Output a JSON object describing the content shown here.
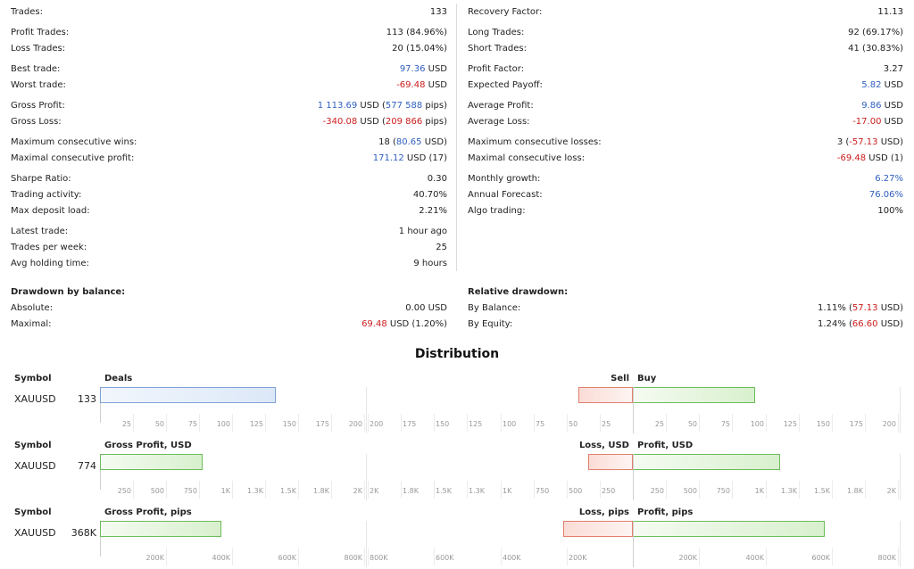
{
  "stats_left": [
    {
      "label": "Trades:",
      "value": [
        {
          "t": "133"
        }
      ]
    },
    {
      "label": "Profit Trades:",
      "value": [
        {
          "t": "113 (84.96%)"
        }
      ]
    },
    {
      "label": "Loss Trades:",
      "value": [
        {
          "t": "20 (15.04%)"
        }
      ]
    },
    {
      "label": "Best trade:",
      "value": [
        {
          "t": "97.36",
          "c": "pos"
        },
        {
          "t": " USD"
        }
      ]
    },
    {
      "label": "Worst trade:",
      "value": [
        {
          "t": "-69.48",
          "c": "neg"
        },
        {
          "t": " USD"
        }
      ]
    },
    {
      "label": "Gross Profit:",
      "value": [
        {
          "t": "1 113.69",
          "c": "pos"
        },
        {
          "t": " USD ("
        },
        {
          "t": "577 588",
          "c": "pos"
        },
        {
          "t": " pips)"
        }
      ]
    },
    {
      "label": "Gross Loss:",
      "value": [
        {
          "t": "-340.08",
          "c": "neg"
        },
        {
          "t": " USD ("
        },
        {
          "t": "209 866",
          "c": "neg"
        },
        {
          "t": " pips)"
        }
      ]
    },
    {
      "label": "Maximum consecutive wins:",
      "value": [
        {
          "t": "18 ("
        },
        {
          "t": "80.65",
          "c": "pos"
        },
        {
          "t": " USD)"
        }
      ]
    },
    {
      "label": "Maximal consecutive profit:",
      "value": [
        {
          "t": "171.12",
          "c": "pos"
        },
        {
          "t": " USD (17)"
        }
      ]
    },
    {
      "label": "Sharpe Ratio:",
      "value": [
        {
          "t": "0.30"
        }
      ]
    },
    {
      "label": "Trading activity:",
      "value": [
        {
          "t": "40.70%"
        }
      ]
    },
    {
      "label": "Max deposit load:",
      "value": [
        {
          "t": "2.21%"
        }
      ]
    },
    {
      "label": "Latest trade:",
      "value": [
        {
          "t": "1 hour ago"
        }
      ]
    },
    {
      "label": "Trades per week:",
      "value": [
        {
          "t": "25"
        }
      ]
    },
    {
      "label": "Avg holding time:",
      "value": [
        {
          "t": "9 hours"
        }
      ]
    }
  ],
  "stats_right": [
    {
      "label": "Recovery Factor:",
      "value": [
        {
          "t": "11.13"
        }
      ]
    },
    {
      "label": "Long Trades:",
      "value": [
        {
          "t": "92 (69.17%)"
        }
      ]
    },
    {
      "label": "Short Trades:",
      "value": [
        {
          "t": "41 (30.83%)"
        }
      ]
    },
    {
      "label": "Profit Factor:",
      "value": [
        {
          "t": "3.27"
        }
      ]
    },
    {
      "label": "Expected Payoff:",
      "value": [
        {
          "t": "5.82",
          "c": "pos"
        },
        {
          "t": " USD"
        }
      ]
    },
    {
      "label": "Average Profit:",
      "value": [
        {
          "t": "9.86",
          "c": "pos"
        },
        {
          "t": " USD"
        }
      ]
    },
    {
      "label": "Average Loss:",
      "value": [
        {
          "t": "-17.00",
          "c": "neg"
        },
        {
          "t": " USD"
        }
      ]
    },
    {
      "label": "Maximum consecutive losses:",
      "value": [
        {
          "t": "3 ("
        },
        {
          "t": "-57.13",
          "c": "neg"
        },
        {
          "t": " USD)"
        }
      ]
    },
    {
      "label": "Maximal consecutive loss:",
      "value": [
        {
          "t": "-69.48",
          "c": "neg"
        },
        {
          "t": " USD (1)"
        }
      ]
    },
    {
      "label": "Monthly growth:",
      "value": [
        {
          "t": "6.27%",
          "c": "pos"
        }
      ]
    },
    {
      "label": "Annual Forecast:",
      "value": [
        {
          "t": "76.06%",
          "c": "pos"
        }
      ]
    },
    {
      "label": "Algo trading:",
      "value": [
        {
          "t": "100%"
        }
      ]
    }
  ],
  "drawdown_left": {
    "title": "Drawdown by balance:",
    "rows": [
      {
        "label": "Absolute:",
        "value": [
          {
            "t": "0.00 USD"
          }
        ]
      },
      {
        "label": "Maximal:",
        "value": [
          {
            "t": "69.48",
            "c": "neg"
          },
          {
            "t": " USD (1.20%)"
          }
        ]
      }
    ]
  },
  "drawdown_right": {
    "title": "Relative drawdown:",
    "rows": [
      {
        "label": "By Balance:",
        "value": [
          {
            "t": "1.11% ("
          },
          {
            "t": "57.13",
            "c": "neg"
          },
          {
            "t": " USD)"
          }
        ]
      },
      {
        "label": "By Equity:",
        "value": [
          {
            "t": "1.24% ("
          },
          {
            "t": "66.60",
            "c": "neg"
          },
          {
            "t": " USD)"
          }
        ]
      }
    ]
  },
  "distribution": {
    "title": "Distribution",
    "symbol_header": "Symbol",
    "blocks": [
      {
        "symbol": "XAUUSD",
        "total": "133",
        "left_header": "Deals",
        "neg_header": "Sell",
        "pos_header": "Buy",
        "left_value": 133,
        "left_max": 200,
        "left_bar_color": "blue",
        "neg_value": 41,
        "pos_value": 92,
        "right_max": 200,
        "left_ticks": [
          "25",
          "50",
          "75",
          "100",
          "125",
          "150",
          "175",
          "200"
        ],
        "right_neg_ticks": [
          "200",
          "175",
          "150",
          "125",
          "100",
          "75",
          "50",
          "25"
        ],
        "right_pos_ticks": [
          "25",
          "50",
          "75",
          "100",
          "125",
          "150",
          "175",
          "200"
        ]
      },
      {
        "symbol": "XAUUSD",
        "total": "774",
        "left_header": "Gross Profit, USD",
        "neg_header": "Loss, USD",
        "pos_header": "Profit, USD",
        "left_value": 774,
        "left_max": 2000,
        "left_bar_color": "green",
        "neg_value": 340,
        "pos_value": 1114,
        "right_max": 2000,
        "left_ticks": [
          "250",
          "500",
          "750",
          "1K",
          "1.3K",
          "1.5K",
          "1.8K",
          "2K"
        ],
        "right_neg_ticks": [
          "2K",
          "1.8K",
          "1.5K",
          "1.3K",
          "1K",
          "750",
          "500",
          "250"
        ],
        "right_pos_ticks": [
          "250",
          "500",
          "750",
          "1K",
          "1.3K",
          "1.5K",
          "1.8K",
          "2K"
        ]
      },
      {
        "symbol": "XAUUSD",
        "total": "368K",
        "left_header": "Gross Profit, pips",
        "neg_header": "Loss, pips",
        "pos_header": "Profit, pips",
        "left_value": 368000,
        "left_max": 800000,
        "left_bar_color": "green",
        "neg_value": 210000,
        "pos_value": 578000,
        "right_max": 800000,
        "left_ticks": [
          "200K",
          "400K",
          "600K",
          "800K"
        ],
        "right_neg_ticks": [
          "800K",
          "600K",
          "400K",
          "200K"
        ],
        "right_pos_ticks": [
          "200K",
          "400K",
          "600K",
          "800K"
        ]
      }
    ]
  }
}
